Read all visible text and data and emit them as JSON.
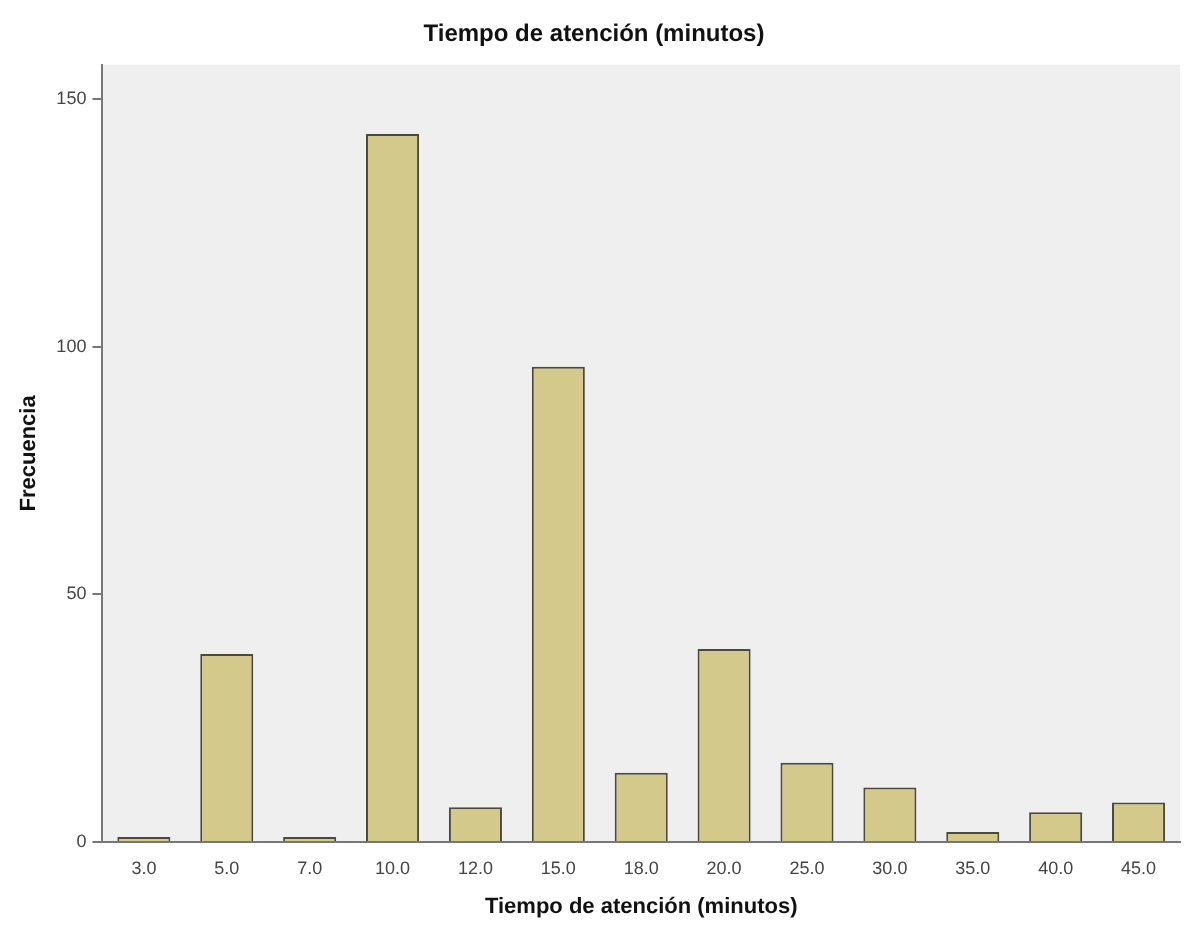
{
  "chart_data": {
    "type": "bar",
    "title": "Tiempo de atención (minutos)",
    "xlabel": "Tiempo de atención (minutos)",
    "ylabel": "Frecuencia",
    "categories": [
      "3.0",
      "5.0",
      "7.0",
      "10.0",
      "12.0",
      "15.0",
      "18.0",
      "20.0",
      "25.0",
      "30.0",
      "35.0",
      "40.0",
      "45.0"
    ],
    "values": [
      1,
      38,
      1,
      143,
      7,
      96,
      14,
      39,
      16,
      11,
      2,
      6,
      8
    ],
    "color": "#d2c98a",
    "ylim": [
      0,
      157
    ],
    "yticks": [
      0,
      50,
      100,
      150
    ],
    "grid": false,
    "legend": false
  }
}
